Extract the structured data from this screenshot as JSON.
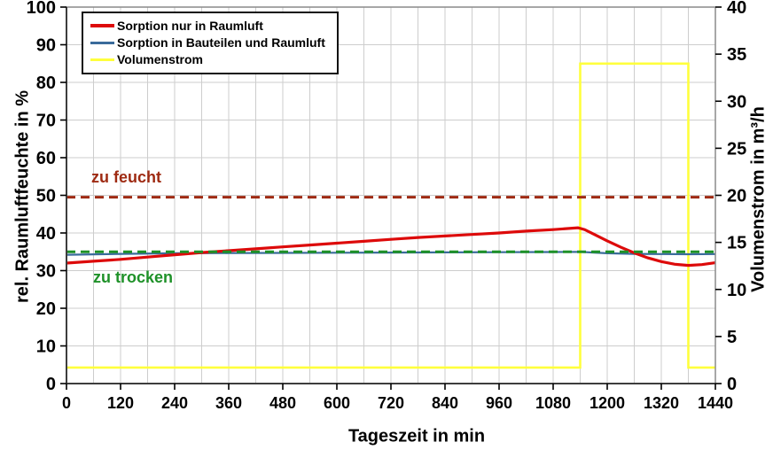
{
  "chart_data": {
    "type": "line",
    "title": "",
    "xlabel": "Tageszeit in min",
    "ylabel_left": "rel. Raumluftfeuchte in %",
    "ylabel_right": "Volumenstrom in m³/h",
    "xlim": [
      0,
      1440
    ],
    "x_ticks": [
      0,
      120,
      240,
      360,
      480,
      600,
      720,
      840,
      960,
      1080,
      1200,
      1320,
      1440
    ],
    "x_minor_grid_step": 60,
    "ylim_left": [
      0,
      100
    ],
    "y_left_ticks": [
      0,
      10,
      20,
      30,
      40,
      50,
      60,
      70,
      80,
      90,
      100
    ],
    "ylim_right": [
      0,
      40
    ],
    "y_right_ticks": [
      0,
      5,
      10,
      15,
      20,
      25,
      30,
      35,
      40
    ],
    "grid": true,
    "legend_position": "top-left",
    "series": [
      {
        "name": "Sorption nur in Raumluft",
        "color": "#dd0a0a",
        "axis": "left",
        "width": 3.2,
        "points": [
          [
            0,
            32.0
          ],
          [
            60,
            32.5
          ],
          [
            120,
            33.0
          ],
          [
            180,
            33.6
          ],
          [
            240,
            34.2
          ],
          [
            300,
            34.8
          ],
          [
            360,
            35.3
          ],
          [
            420,
            35.8
          ],
          [
            480,
            36.3
          ],
          [
            540,
            36.8
          ],
          [
            600,
            37.3
          ],
          [
            660,
            37.8
          ],
          [
            720,
            38.3
          ],
          [
            780,
            38.8
          ],
          [
            840,
            39.2
          ],
          [
            900,
            39.6
          ],
          [
            960,
            40.0
          ],
          [
            1020,
            40.5
          ],
          [
            1080,
            40.9
          ],
          [
            1135,
            41.4
          ],
          [
            1150,
            40.9
          ],
          [
            1170,
            39.7
          ],
          [
            1200,
            37.9
          ],
          [
            1230,
            36.2
          ],
          [
            1260,
            34.7
          ],
          [
            1290,
            33.4
          ],
          [
            1320,
            32.4
          ],
          [
            1350,
            31.7
          ],
          [
            1380,
            31.4
          ],
          [
            1410,
            31.6
          ],
          [
            1440,
            32.1
          ]
        ]
      },
      {
        "name": "Sorption in Bauteilen und Raumluft",
        "color": "#3a6b9b",
        "axis": "left",
        "width": 2.2,
        "points": [
          [
            0,
            34.2
          ],
          [
            120,
            34.45
          ],
          [
            240,
            34.6
          ],
          [
            360,
            34.65
          ],
          [
            480,
            34.7
          ],
          [
            600,
            34.75
          ],
          [
            720,
            34.8
          ],
          [
            840,
            34.85
          ],
          [
            960,
            34.9
          ],
          [
            1080,
            34.95
          ],
          [
            1140,
            35.0
          ],
          [
            1170,
            34.8
          ],
          [
            1200,
            34.6
          ],
          [
            1260,
            34.45
          ],
          [
            1320,
            34.4
          ],
          [
            1380,
            34.35
          ],
          [
            1440,
            34.4
          ]
        ]
      },
      {
        "name": "Volumenstrom",
        "color": "#ffff3c",
        "axis": "right",
        "width": 2.6,
        "points": [
          [
            0,
            1.7
          ],
          [
            1140,
            1.7
          ],
          [
            1140,
            34
          ],
          [
            1380,
            34
          ],
          [
            1380,
            1.7
          ],
          [
            1440,
            1.7
          ]
        ]
      }
    ],
    "reference_lines": [
      {
        "label": "zu feucht",
        "value": 49.5,
        "axis": "left",
        "color": "#9e2a12",
        "style": "dashed"
      },
      {
        "label": "zu trocken",
        "value": 35,
        "axis": "left",
        "color": "#1e9128",
        "style": "dashed"
      }
    ]
  }
}
